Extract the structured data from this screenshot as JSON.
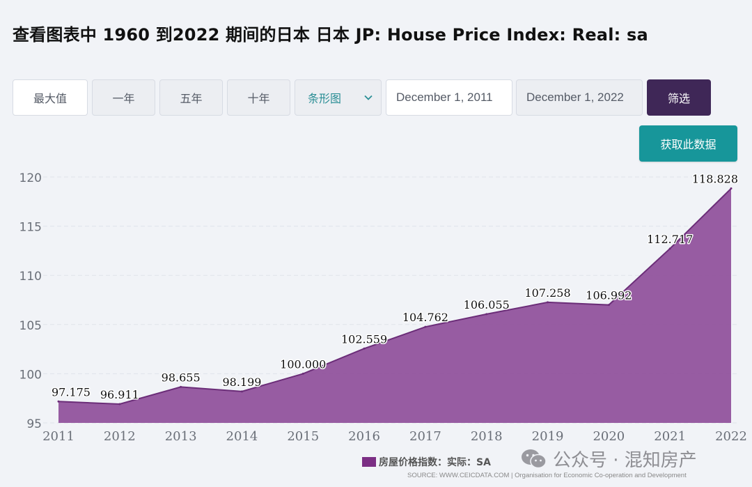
{
  "title": "查看图表中 1960 到2022 期间的日本 日本 JP: House Price Index: Real: sa",
  "toolbar": {
    "max_label": "最大值",
    "one_year_label": "一年",
    "five_year_label": "五年",
    "ten_year_label": "十年",
    "chart_type_value": "条形图",
    "start_date": "December 1, 2011",
    "end_date": "December 1, 2022",
    "filter_label": "筛选",
    "get_data_label": "获取此数据"
  },
  "colors": {
    "area_fill": "#8f4f9a",
    "area_line": "#6b2d78",
    "legend_swatch": "#7b2e84",
    "filter_button": "#3f2757",
    "get_data_button": "#17969a",
    "select_text": "#2a8e95"
  },
  "icons": {
    "select": "chevron-down-icon",
    "watermark": "wechat-icon"
  },
  "watermark_text": "公众号 · 混知房产",
  "source_text": "SOURCE: WWW.CEICDATA.COM | Organisation for Economic Co-operation and Development",
  "chart_data": {
    "type": "area",
    "title": "",
    "xlabel": "",
    "ylabel": "",
    "x": [
      "2011",
      "2012",
      "2013",
      "2014",
      "2015",
      "2016",
      "2017",
      "2018",
      "2019",
      "2020",
      "2021",
      "2022"
    ],
    "series": [
      {
        "name": "房屋价格指数：实际：SA",
        "values": [
          97.175,
          96.911,
          98.655,
          98.199,
          100.0,
          102.559,
          104.762,
          106.055,
          107.258,
          106.992,
          112.717,
          118.828
        ]
      }
    ],
    "data_labels": [
      "97.175",
      "96.911",
      "98.655",
      "98.199",
      "100.000",
      "102.559",
      "104.762",
      "106.055",
      "107.258",
      "106.992",
      "112.717",
      "118.828"
    ],
    "y_ticks": [
      "95",
      "100",
      "105",
      "110",
      "115",
      "120"
    ],
    "y_tick_values": [
      95,
      100,
      105,
      110,
      115,
      120
    ],
    "ylim": [
      95,
      120
    ],
    "grid": true,
    "legend_position": "bottom"
  }
}
